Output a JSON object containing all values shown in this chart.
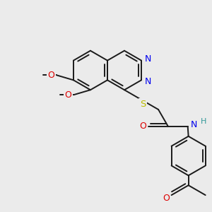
{
  "bg_color": "#ebebeb",
  "bond_color": "#1a1a1a",
  "bond_width": 1.4,
  "atom_colors": {
    "N": "#0000ee",
    "O": "#dd0000",
    "S": "#bbbb00",
    "H": "#339999",
    "C": "#1a1a1a"
  },
  "font_size": 8.5,
  "fig_size": [
    3.0,
    3.0
  ],
  "dpi": 100
}
